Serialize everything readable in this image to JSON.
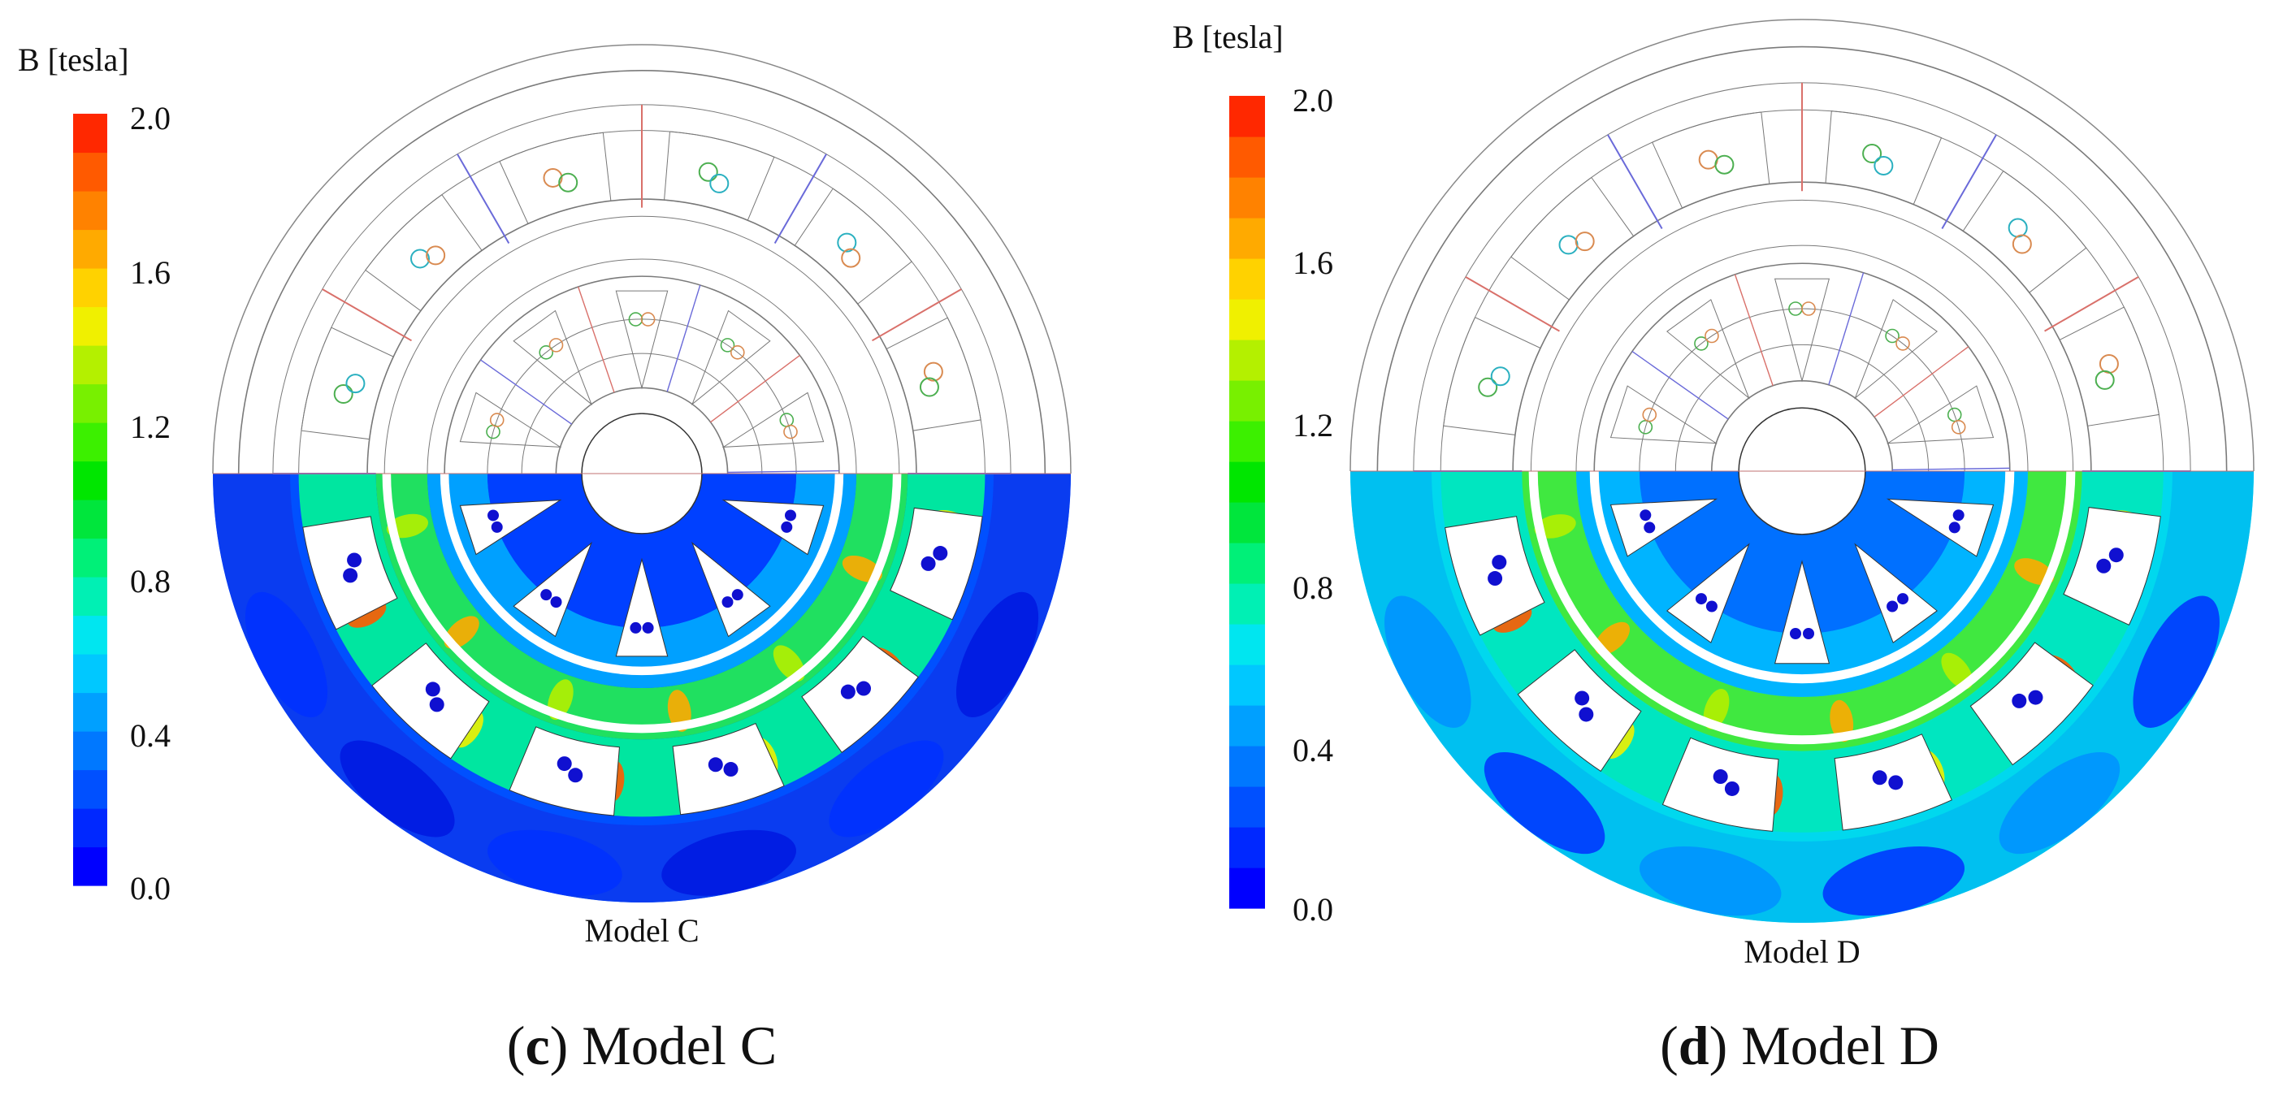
{
  "panels": [
    {
      "id": "c",
      "units_label": "B [tesla]",
      "ticks": [
        "2.0",
        "1.6",
        "1.2",
        "0.8",
        "0.4",
        "0.0"
      ],
      "model_label": "Model C",
      "caption_letter": "c",
      "caption_text": "Model C"
    },
    {
      "id": "d",
      "units_label": "B [tesla]",
      "ticks": [
        "2.0",
        "1.6",
        "1.2",
        "0.8",
        "0.4",
        "0.0"
      ],
      "model_label": "Model D",
      "caption_letter": "d",
      "caption_text": "Model D"
    }
  ],
  "colors": {
    "scale": [
      "#0000ff",
      "#0028ff",
      "#0050ff",
      "#0078ff",
      "#00a0ff",
      "#00c8ff",
      "#00e6f0",
      "#00f0b4",
      "#00f078",
      "#00e63c",
      "#00e600",
      "#3cf000",
      "#78f000",
      "#b4f000",
      "#f0f000",
      "#ffd200",
      "#ffaa00",
      "#ff8200",
      "#ff5a00",
      "#ff2800"
    ],
    "contour": "#7a7a7a",
    "phase_red": "#d9706a",
    "phase_blue": "#6a6ad9",
    "coil_green": "#4caf50",
    "coil_cyan": "#2ab0c0",
    "coil_orange": "#d98a50",
    "conductor": "#1010d0"
  }
}
